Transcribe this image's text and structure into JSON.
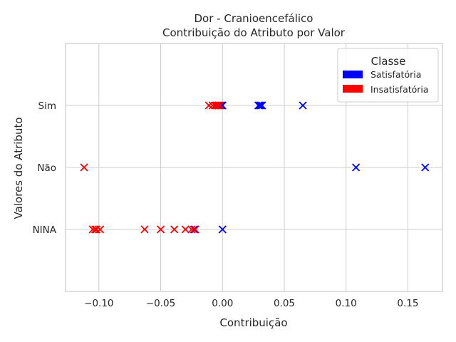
{
  "chart_data": {
    "type": "scatter",
    "title": "Dor - Cranioencefálico",
    "subtitle": "Contribuição do Atributo por Valor",
    "xlabel": "Contribuição",
    "ylabel": "Valores do Atributo",
    "xlim": [
      -0.127,
      0.178
    ],
    "x_ticks": [
      -0.1,
      -0.05,
      0.0,
      0.05,
      0.1,
      0.15
    ],
    "x_tick_labels": [
      "−0.10",
      "−0.05",
      "0.00",
      "0.05",
      "0.10",
      "0.15"
    ],
    "categories": [
      "NINA",
      "Não",
      "Sim"
    ],
    "grid": true,
    "marker": "x",
    "legend": {
      "title": "Classe",
      "placement": "top-right",
      "entries": [
        {
          "label": "Satisfatória",
          "color": "#0000ff"
        },
        {
          "label": "Insatisfatória",
          "color": "#ff0000"
        }
      ]
    },
    "series": [
      {
        "name": "Satisfatória",
        "color": "#0000ff",
        "points": [
          {
            "x": -0.003,
            "y": "Sim"
          },
          {
            "x": -0.001,
            "y": "Sim"
          },
          {
            "x": 0.0,
            "y": "Sim"
          },
          {
            "x": 0.029,
            "y": "Sim"
          },
          {
            "x": 0.03,
            "y": "Sim"
          },
          {
            "x": 0.031,
            "y": "Sim"
          },
          {
            "x": 0.032,
            "y": "Sim"
          },
          {
            "x": 0.065,
            "y": "Sim"
          },
          {
            "x": 0.108,
            "y": "Não"
          },
          {
            "x": 0.164,
            "y": "Não"
          },
          {
            "x": -0.023,
            "y": "NINA"
          },
          {
            "x": 0.0,
            "y": "NINA"
          }
        ]
      },
      {
        "name": "Insatisfatória",
        "color": "#ff0000",
        "points": [
          {
            "x": -0.011,
            "y": "Sim"
          },
          {
            "x": -0.008,
            "y": "Sim"
          },
          {
            "x": -0.006,
            "y": "Sim"
          },
          {
            "x": -0.005,
            "y": "Sim"
          },
          {
            "x": -0.004,
            "y": "Sim"
          },
          {
            "x": -0.002,
            "y": "Sim"
          },
          {
            "x": -0.112,
            "y": "Não"
          },
          {
            "x": -0.105,
            "y": "NINA"
          },
          {
            "x": -0.103,
            "y": "NINA"
          },
          {
            "x": -0.102,
            "y": "NINA"
          },
          {
            "x": -0.099,
            "y": "NINA"
          },
          {
            "x": -0.063,
            "y": "NINA"
          },
          {
            "x": -0.05,
            "y": "NINA"
          },
          {
            "x": -0.039,
            "y": "NINA"
          },
          {
            "x": -0.03,
            "y": "NINA"
          },
          {
            "x": -0.025,
            "y": "NINA"
          },
          {
            "x": -0.022,
            "y": "NINA"
          }
        ]
      }
    ]
  }
}
